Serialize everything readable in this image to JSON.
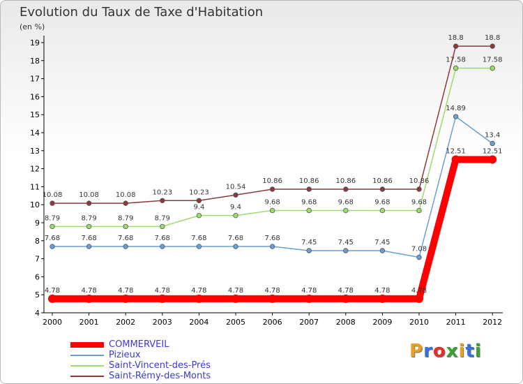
{
  "header": {
    "title": "Evolution du Taux de Taxe d'Habitation",
    "subtitle": "(en %)"
  },
  "brand": {
    "text": "Proxiti",
    "letter_colors": [
      "#e8a020",
      "#3a6fd8",
      "#e03030",
      "#3aa030",
      "#e8a020",
      "#3a6fd8",
      "#3aa030"
    ]
  },
  "chart_data": {
    "type": "line",
    "title": "Evolution du Taux de Taxe d'Habitation",
    "ylabel": "(en %)",
    "x": [
      2000,
      2001,
      2002,
      2003,
      2004,
      2005,
      2006,
      2007,
      2008,
      2009,
      2010,
      2011,
      2012
    ],
    "ylim": [
      4,
      19
    ],
    "yticks": [
      4,
      5,
      6,
      7,
      8,
      9,
      10,
      11,
      12,
      13,
      14,
      15,
      16,
      17,
      18,
      19
    ],
    "grid": false,
    "legend_position": "bottom-left",
    "series": [
      {
        "name": "COMMERVEIL",
        "color": "#ff0000",
        "values": [
          4.78,
          4.78,
          4.78,
          4.78,
          4.78,
          4.78,
          4.78,
          4.78,
          4.78,
          4.78,
          4.78,
          12.51,
          12.51
        ],
        "labels": [
          "4.78",
          "4.78",
          "4.78",
          "4.78",
          "4.78",
          "4.78",
          "4.78",
          "4.78",
          "4.78",
          "4.78",
          "4.78",
          "12.51",
          "12.51"
        ]
      },
      {
        "name": "Pizieux",
        "color": "#6a9fd4",
        "values": [
          7.68,
          7.68,
          7.68,
          7.68,
          7.68,
          7.68,
          7.68,
          7.45,
          7.45,
          7.45,
          7.08,
          14.89,
          13.4
        ],
        "labels": [
          "7.68",
          "7.68",
          "7.68",
          "7.68",
          "7.68",
          "7.68",
          "7.68",
          "7.45",
          "7.45",
          "7.45",
          "7.08",
          "14.89",
          "13.4"
        ]
      },
      {
        "name": "Saint-Vincent-des-Prés",
        "color": "#9cdc6a",
        "values": [
          8.79,
          8.79,
          8.79,
          8.79,
          9.4,
          9.4,
          9.68,
          9.68,
          9.68,
          9.68,
          9.68,
          17.58,
          17.58
        ],
        "labels": [
          "8.79",
          "8.79",
          "8.79",
          "8.79",
          "9.4",
          "9.4",
          "9.68",
          "9.68",
          "9.68",
          "9.68",
          "9.68",
          "17.58",
          "17.58"
        ]
      },
      {
        "name": "Saint-Rémy-des-Monts",
        "color": "#8a3a3a",
        "values": [
          10.08,
          10.08,
          10.08,
          10.23,
          10.23,
          10.54,
          10.86,
          10.86,
          10.86,
          10.86,
          10.86,
          18.8,
          18.8
        ],
        "labels": [
          "10.08",
          "10.08",
          "10.08",
          "10.23",
          "10.23",
          "10.54",
          "10.86",
          "10.86",
          "10.86",
          "10.86",
          "10.86",
          "18.8",
          "18.8"
        ]
      }
    ]
  }
}
